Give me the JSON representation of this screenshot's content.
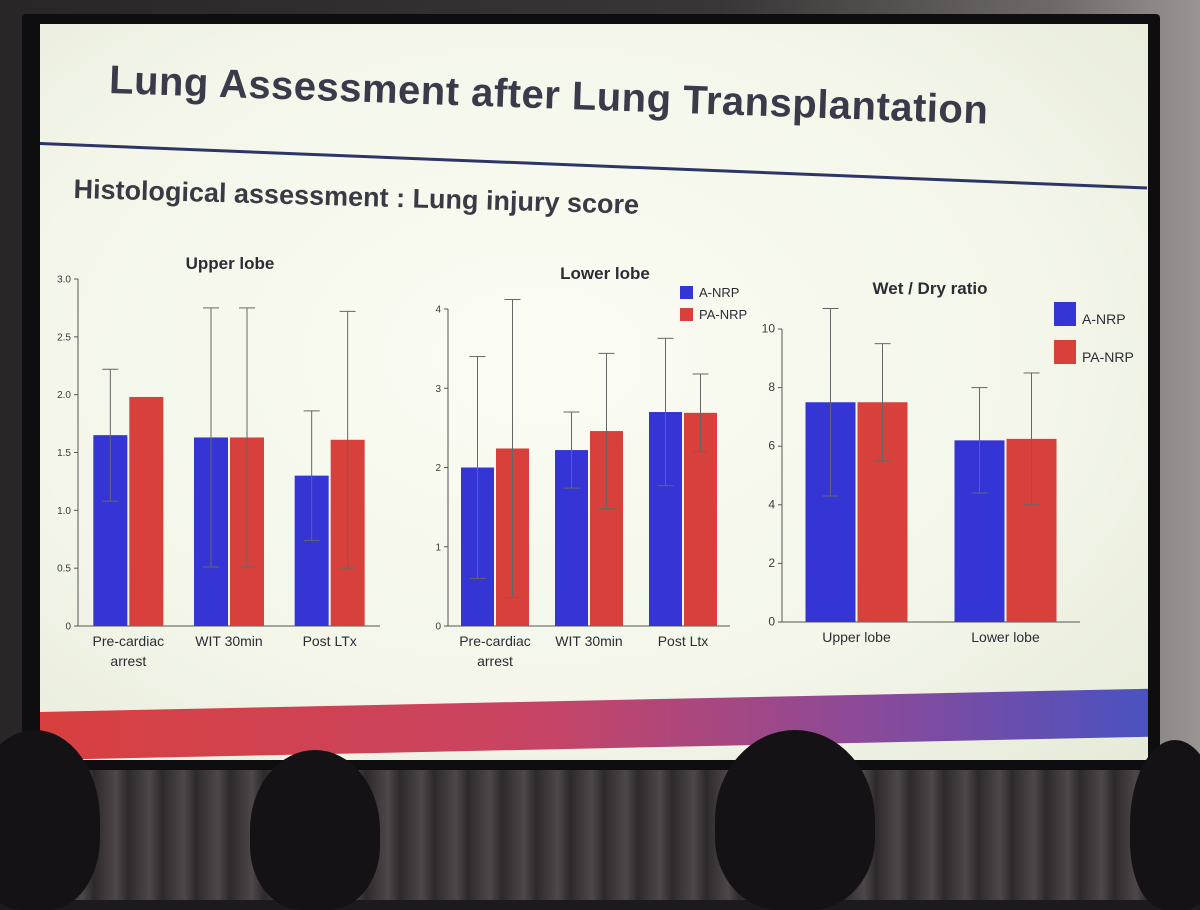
{
  "slide": {
    "title": "Lung Assessment after Lung Transplantation",
    "subtitle": "Histological assessment : Lung injury score"
  },
  "colors": {
    "a_nrp": "#3535d6",
    "pa_nrp": "#d8413b",
    "axis": "#555555"
  },
  "chart_data": [
    {
      "type": "bar",
      "title": "Upper lobe",
      "categories": [
        "Pre-cardiac arrest",
        "WIT 30min",
        "Post LTx"
      ],
      "category_lines": [
        [
          "Pre-cardiac",
          "arrest"
        ],
        [
          "WIT 30min"
        ],
        [
          "Post LTx"
        ]
      ],
      "series": [
        {
          "name": "A-NRP",
          "values": [
            1.65,
            1.63,
            1.3
          ],
          "errors": [
            0.57,
            1.12,
            0.56
          ]
        },
        {
          "name": "PA-NRP",
          "values": [
            1.98,
            1.63,
            1.61
          ],
          "errors": [
            0.0,
            1.12,
            1.11
          ]
        }
      ],
      "ylim": [
        0,
        3.0
      ],
      "yticks": [
        "0",
        "0.5",
        "1.0",
        "1.5",
        "2.0",
        "2.5",
        "3.0"
      ],
      "legend": false
    },
    {
      "type": "bar",
      "title": "Lower lobe",
      "categories": [
        "Pre-cardiac arrest",
        "WIT 30min",
        "Post Ltx"
      ],
      "category_lines": [
        [
          "Pre-cardiac",
          "arrest"
        ],
        [
          "WIT 30min"
        ],
        [
          "Post Ltx"
        ]
      ],
      "series": [
        {
          "name": "A-NRP",
          "values": [
            2.0,
            2.22,
            2.7
          ],
          "errors": [
            1.4,
            0.48,
            0.93
          ]
        },
        {
          "name": "PA-NRP",
          "values": [
            2.24,
            2.46,
            2.69
          ],
          "errors": [
            1.88,
            0.98,
            0.49
          ]
        }
      ],
      "ylim": [
        0,
        4
      ],
      "yticks": [
        "0",
        "1",
        "2",
        "3",
        "4"
      ],
      "legend": true,
      "legend_position": "top-right"
    },
    {
      "type": "bar",
      "title": "Wet / Dry ratio",
      "categories": [
        "Upper lobe",
        "Lower lobe"
      ],
      "category_lines": [
        [
          "Upper lobe"
        ],
        [
          "Lower lobe"
        ]
      ],
      "series": [
        {
          "name": "A-NRP",
          "values": [
            7.5,
            6.2
          ],
          "errors": [
            3.2,
            1.8
          ]
        },
        {
          "name": "PA-NRP",
          "values": [
            7.5,
            6.25
          ],
          "errors": [
            2.0,
            2.25
          ]
        }
      ],
      "ylim": [
        0,
        10
      ],
      "yticks": [
        "0",
        "2",
        "4",
        "6",
        "8",
        "10"
      ],
      "legend": true,
      "legend_position": "top-right"
    }
  ]
}
